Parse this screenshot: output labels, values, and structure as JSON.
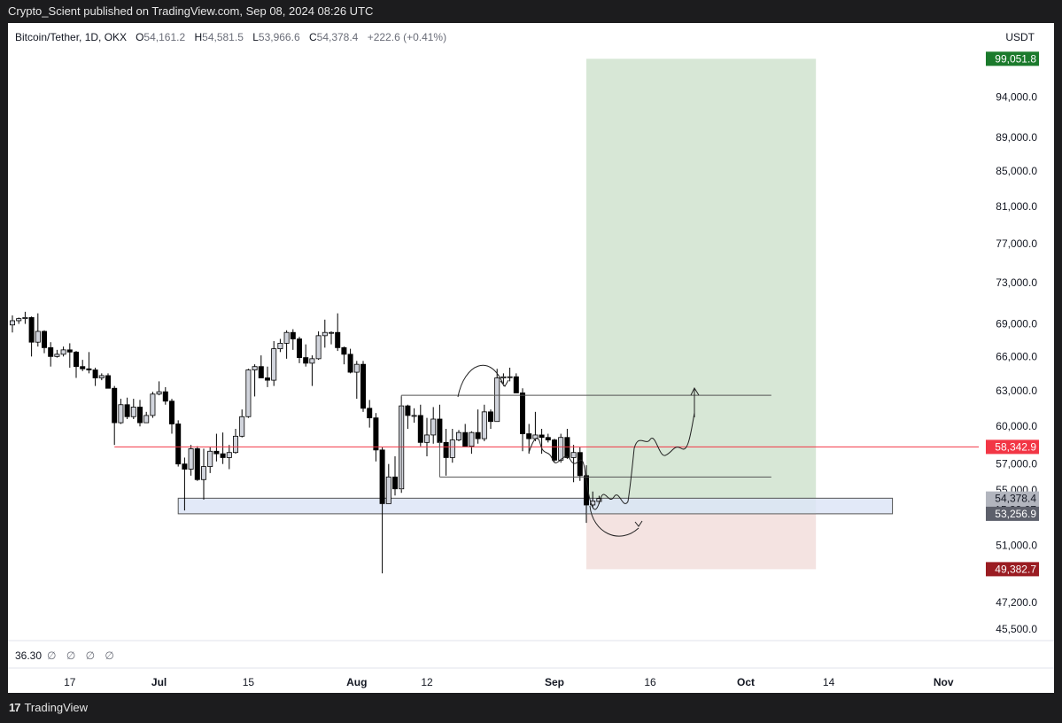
{
  "header": {
    "publish_line": "Crypto_Scient published on TradingView.com, Sep 08, 2024 08:26 UTC"
  },
  "legend": {
    "symbol": "Bitcoin/Tether, 1D, OKX",
    "open_label": "O",
    "open": "54,161.2",
    "high_label": "H",
    "high": "54,581.5",
    "low_label": "L",
    "low": "53,966.6",
    "close_label": "C",
    "close": "54,378.4",
    "change": "+222.6 (+0.41%)"
  },
  "currency": "USDT",
  "indicator": {
    "value": "36.30",
    "nulls": "∅ ∅ ∅ ∅"
  },
  "footer": {
    "brand_mark": "17",
    "brand": "TradingView"
  },
  "colors": {
    "up_candle": "#d1d4dc",
    "down_candle": "#000000",
    "target_zone": "#d7e7d6",
    "stop_zone": "#f4e3e1",
    "support_box": "#dde5f7",
    "level_line": "#f23645",
    "target_badge": "#1b7a2c",
    "stop_badge": "#9a1c22"
  },
  "chart_data": {
    "type": "candlestick",
    "symbol": "Bitcoin/Tether",
    "interval": "1D",
    "scale": "log",
    "ylim": [
      44800,
      104000
    ],
    "y_ticks": [
      "94,000.0",
      "89,000.0",
      "85,000.0",
      "81,000.0",
      "77,000.0",
      "73,000.0",
      "69,000.0",
      "66,000.0",
      "63,000.0",
      "60,000.0",
      "57,000.0",
      "55,000.0",
      "51,000.0",
      "47,200.0",
      "45,500.0"
    ],
    "y_tick_values": [
      94000,
      89000,
      85000,
      81000,
      77000,
      73000,
      69000,
      66000,
      63000,
      60000,
      57000,
      55000,
      51000,
      47200,
      45500
    ],
    "x_ticks": [
      "17",
      "Jul",
      "15",
      "Aug",
      "12",
      "Sep",
      "16",
      "Oct",
      "14",
      "Nov"
    ],
    "x_tick_dates": [
      "2024-06-17",
      "2024-07-01",
      "2024-07-15",
      "2024-08-01",
      "2024-08-12",
      "2024-09-01",
      "2024-09-16",
      "2024-10-01",
      "2024-10-14",
      "2024-11-01"
    ],
    "bold_ticks": [
      "Jul",
      "Aug",
      "Sep",
      "Oct",
      "Nov"
    ],
    "candles": [
      {
        "date": "2024-06-08",
        "o": 68900,
        "h": 69800,
        "l": 68200,
        "c": 69300
      },
      {
        "date": "2024-06-09",
        "o": 69300,
        "h": 69600,
        "l": 69000,
        "c": 69500
      },
      {
        "date": "2024-06-10",
        "o": 69500,
        "h": 70150,
        "l": 69000,
        "c": 69600
      },
      {
        "date": "2024-06-11",
        "o": 69600,
        "h": 69700,
        "l": 66000,
        "c": 67300
      },
      {
        "date": "2024-06-12",
        "o": 67300,
        "h": 70000,
        "l": 66900,
        "c": 68300
      },
      {
        "date": "2024-06-13",
        "o": 68300,
        "h": 68400,
        "l": 66300,
        "c": 66800
      },
      {
        "date": "2024-06-14",
        "o": 66800,
        "h": 67300,
        "l": 65100,
        "c": 66000
      },
      {
        "date": "2024-06-15",
        "o": 66000,
        "h": 66600,
        "l": 65900,
        "c": 66200
      },
      {
        "date": "2024-06-16",
        "o": 66200,
        "h": 66900,
        "l": 66000,
        "c": 66600
      },
      {
        "date": "2024-06-17",
        "o": 66600,
        "h": 67200,
        "l": 65000,
        "c": 66400
      },
      {
        "date": "2024-06-18",
        "o": 66400,
        "h": 66500,
        "l": 64100,
        "c": 65100
      },
      {
        "date": "2024-06-19",
        "o": 65100,
        "h": 65700,
        "l": 64700,
        "c": 64900
      },
      {
        "date": "2024-06-20",
        "o": 64900,
        "h": 66400,
        "l": 64500,
        "c": 64800
      },
      {
        "date": "2024-06-21",
        "o": 64800,
        "h": 65000,
        "l": 63400,
        "c": 64100
      },
      {
        "date": "2024-06-22",
        "o": 64100,
        "h": 64500,
        "l": 63900,
        "c": 64300
      },
      {
        "date": "2024-06-23",
        "o": 64300,
        "h": 64500,
        "l": 63200,
        "c": 63200
      },
      {
        "date": "2024-06-24",
        "o": 63200,
        "h": 63400,
        "l": 58500,
        "c": 60300
      },
      {
        "date": "2024-06-25",
        "o": 60300,
        "h": 62300,
        "l": 60200,
        "c": 61800
      },
      {
        "date": "2024-06-26",
        "o": 61800,
        "h": 62400,
        "l": 60600,
        "c": 60800
      },
      {
        "date": "2024-06-27",
        "o": 60800,
        "h": 62300,
        "l": 60600,
        "c": 61600
      },
      {
        "date": "2024-06-28",
        "o": 61600,
        "h": 62200,
        "l": 60000,
        "c": 60300
      },
      {
        "date": "2024-06-29",
        "o": 60300,
        "h": 61200,
        "l": 60300,
        "c": 60900
      },
      {
        "date": "2024-06-30",
        "o": 60900,
        "h": 62900,
        "l": 60700,
        "c": 62700
      },
      {
        "date": "2024-07-01",
        "o": 62700,
        "h": 63800,
        "l": 62600,
        "c": 62900
      },
      {
        "date": "2024-07-02",
        "o": 62900,
        "h": 63300,
        "l": 61800,
        "c": 62100
      },
      {
        "date": "2024-07-03",
        "o": 62100,
        "h": 62300,
        "l": 59400,
        "c": 60200
      },
      {
        "date": "2024-07-04",
        "o": 60200,
        "h": 60500,
        "l": 56800,
        "c": 57000
      },
      {
        "date": "2024-07-05",
        "o": 57000,
        "h": 57500,
        "l": 53500,
        "c": 56600
      },
      {
        "date": "2024-07-06",
        "o": 56600,
        "h": 58500,
        "l": 56100,
        "c": 58200
      },
      {
        "date": "2024-07-07",
        "o": 58200,
        "h": 58400,
        "l": 55700,
        "c": 55800
      },
      {
        "date": "2024-07-08",
        "o": 55800,
        "h": 58200,
        "l": 54300,
        "c": 56800
      },
      {
        "date": "2024-07-09",
        "o": 56800,
        "h": 58300,
        "l": 56300,
        "c": 58000
      },
      {
        "date": "2024-07-10",
        "o": 58000,
        "h": 59400,
        "l": 57200,
        "c": 57800
      },
      {
        "date": "2024-07-11",
        "o": 57800,
        "h": 59500,
        "l": 57000,
        "c": 57500
      },
      {
        "date": "2024-07-12",
        "o": 57500,
        "h": 58500,
        "l": 56600,
        "c": 57900
      },
      {
        "date": "2024-07-13",
        "o": 57900,
        "h": 59800,
        "l": 57800,
        "c": 59200
      },
      {
        "date": "2024-07-14",
        "o": 59200,
        "h": 61400,
        "l": 59100,
        "c": 60800
      },
      {
        "date": "2024-07-15",
        "o": 60800,
        "h": 64900,
        "l": 60700,
        "c": 64800
      },
      {
        "date": "2024-07-16",
        "o": 64800,
        "h": 65300,
        "l": 62500,
        "c": 65100
      },
      {
        "date": "2024-07-17",
        "o": 65100,
        "h": 66100,
        "l": 64300,
        "c": 64100
      },
      {
        "date": "2024-07-18",
        "o": 64100,
        "h": 65100,
        "l": 63300,
        "c": 63900
      },
      {
        "date": "2024-07-19",
        "o": 63900,
        "h": 67400,
        "l": 63400,
        "c": 66700
      },
      {
        "date": "2024-07-20",
        "o": 66700,
        "h": 67600,
        "l": 66400,
        "c": 67200
      },
      {
        "date": "2024-07-21",
        "o": 67200,
        "h": 68400,
        "l": 65800,
        "c": 68200
      },
      {
        "date": "2024-07-22",
        "o": 68200,
        "h": 68500,
        "l": 66600,
        "c": 67600
      },
      {
        "date": "2024-07-23",
        "o": 67600,
        "h": 67800,
        "l": 65400,
        "c": 65900
      },
      {
        "date": "2024-07-24",
        "o": 65900,
        "h": 67100,
        "l": 65100,
        "c": 65400
      },
      {
        "date": "2024-07-25",
        "o": 65400,
        "h": 66100,
        "l": 63400,
        "c": 65800
      },
      {
        "date": "2024-07-26",
        "o": 65800,
        "h": 68300,
        "l": 65700,
        "c": 67900
      },
      {
        "date": "2024-07-27",
        "o": 67900,
        "h": 69400,
        "l": 66800,
        "c": 68200
      },
      {
        "date": "2024-07-28",
        "o": 68200,
        "h": 68300,
        "l": 67100,
        "c": 68200
      },
      {
        "date": "2024-07-29",
        "o": 68200,
        "h": 70000,
        "l": 66500,
        "c": 66800
      },
      {
        "date": "2024-07-30",
        "o": 66800,
        "h": 66900,
        "l": 65300,
        "c": 66200
      },
      {
        "date": "2024-07-31",
        "o": 66200,
        "h": 66700,
        "l": 64500,
        "c": 64600
      },
      {
        "date": "2024-08-01",
        "o": 64600,
        "h": 65600,
        "l": 62300,
        "c": 65300
      },
      {
        "date": "2024-08-02",
        "o": 65300,
        "h": 65600,
        "l": 61200,
        "c": 61500
      },
      {
        "date": "2024-08-03",
        "o": 61500,
        "h": 62200,
        "l": 59900,
        "c": 60700
      },
      {
        "date": "2024-08-04",
        "o": 60700,
        "h": 61100,
        "l": 57200,
        "c": 58100
      },
      {
        "date": "2024-08-05",
        "o": 58100,
        "h": 58300,
        "l": 49100,
        "c": 54000
      },
      {
        "date": "2024-08-06",
        "o": 54000,
        "h": 57000,
        "l": 54000,
        "c": 56000
      },
      {
        "date": "2024-08-07",
        "o": 56000,
        "h": 57600,
        "l": 54600,
        "c": 55100
      },
      {
        "date": "2024-08-08",
        "o": 55100,
        "h": 62500,
        "l": 54800,
        "c": 61700
      },
      {
        "date": "2024-08-09",
        "o": 61700,
        "h": 61800,
        "l": 59800,
        "c": 60900
      },
      {
        "date": "2024-08-10",
        "o": 60900,
        "h": 61500,
        "l": 60300,
        "c": 60900
      },
      {
        "date": "2024-08-11",
        "o": 60900,
        "h": 61800,
        "l": 58400,
        "c": 58700
      },
      {
        "date": "2024-08-12",
        "o": 58700,
        "h": 60700,
        "l": 57600,
        "c": 59300
      },
      {
        "date": "2024-08-13",
        "o": 59300,
        "h": 61600,
        "l": 58600,
        "c": 60600
      },
      {
        "date": "2024-08-14",
        "o": 60600,
        "h": 61800,
        "l": 58400,
        "c": 58700
      },
      {
        "date": "2024-08-15",
        "o": 58700,
        "h": 59800,
        "l": 56100,
        "c": 57500
      },
      {
        "date": "2024-08-16",
        "o": 57500,
        "h": 59800,
        "l": 57100,
        "c": 58900
      },
      {
        "date": "2024-08-17",
        "o": 58900,
        "h": 59700,
        "l": 58800,
        "c": 59500
      },
      {
        "date": "2024-08-18",
        "o": 59500,
        "h": 60200,
        "l": 58400,
        "c": 58400
      },
      {
        "date": "2024-08-19",
        "o": 58400,
        "h": 59600,
        "l": 57800,
        "c": 59500
      },
      {
        "date": "2024-08-20",
        "o": 59500,
        "h": 61400,
        "l": 58600,
        "c": 59000
      },
      {
        "date": "2024-08-21",
        "o": 59000,
        "h": 61800,
        "l": 58800,
        "c": 61200
      },
      {
        "date": "2024-08-22",
        "o": 61200,
        "h": 61400,
        "l": 59800,
        "c": 60400
      },
      {
        "date": "2024-08-23",
        "o": 60400,
        "h": 64900,
        "l": 60400,
        "c": 64100
      },
      {
        "date": "2024-08-24",
        "o": 64100,
        "h": 64500,
        "l": 63600,
        "c": 64200
      },
      {
        "date": "2024-08-25",
        "o": 64200,
        "h": 65000,
        "l": 63800,
        "c": 64200
      },
      {
        "date": "2024-08-26",
        "o": 64200,
        "h": 64500,
        "l": 62800,
        "c": 62800
      },
      {
        "date": "2024-08-27",
        "o": 62800,
        "h": 63200,
        "l": 58000,
        "c": 59400
      },
      {
        "date": "2024-08-28",
        "o": 59400,
        "h": 60200,
        "l": 57800,
        "c": 59000
      },
      {
        "date": "2024-08-29",
        "o": 59000,
        "h": 61200,
        "l": 58800,
        "c": 59300
      },
      {
        "date": "2024-08-30",
        "o": 59300,
        "h": 59800,
        "l": 57800,
        "c": 59100
      },
      {
        "date": "2024-08-31",
        "o": 59100,
        "h": 59400,
        "l": 58700,
        "c": 58900
      },
      {
        "date": "2024-09-01",
        "o": 58900,
        "h": 59000,
        "l": 57200,
        "c": 57300
      },
      {
        "date": "2024-09-02",
        "o": 57300,
        "h": 59400,
        "l": 57100,
        "c": 59100
      },
      {
        "date": "2024-09-03",
        "o": 59100,
        "h": 59800,
        "l": 57400,
        "c": 57500
      },
      {
        "date": "2024-09-04",
        "o": 57500,
        "h": 58500,
        "l": 55600,
        "c": 57900
      },
      {
        "date": "2024-09-05",
        "o": 57900,
        "h": 58300,
        "l": 55700,
        "c": 56100
      },
      {
        "date": "2024-09-06",
        "o": 56100,
        "h": 56900,
        "l": 52600,
        "c": 53900
      },
      {
        "date": "2024-09-07",
        "o": 53900,
        "h": 54900,
        "l": 53700,
        "c": 54200
      },
      {
        "date": "2024-09-08",
        "o": 54161.2,
        "h": 54581.5,
        "l": 53966.6,
        "c": 54378.4
      }
    ],
    "drawings": {
      "long_position": {
        "entry": 53256.9,
        "target": 99051.8,
        "stop": 49382.7,
        "start": "2024-09-06",
        "end": "2024-10-12"
      },
      "support_zone": {
        "top": 54400,
        "bottom": 53256.9,
        "start": "2024-07-04",
        "end": "2024-10-24"
      },
      "horizontal_level": {
        "price": 58342.9,
        "start": "2024-06-24"
      },
      "range_top": {
        "price": 62600,
        "start": "2024-08-08",
        "end": "2024-10-05"
      },
      "range_mid": {
        "price": 56000,
        "start": "2024-08-14",
        "end": "2024-10-05"
      }
    },
    "price_badges": {
      "target": "99,051.8",
      "level": "58,342.9",
      "last": "54,378.4",
      "countdown": "15:33:27",
      "entry": "53,256.9",
      "stop": "49,382.7"
    }
  }
}
